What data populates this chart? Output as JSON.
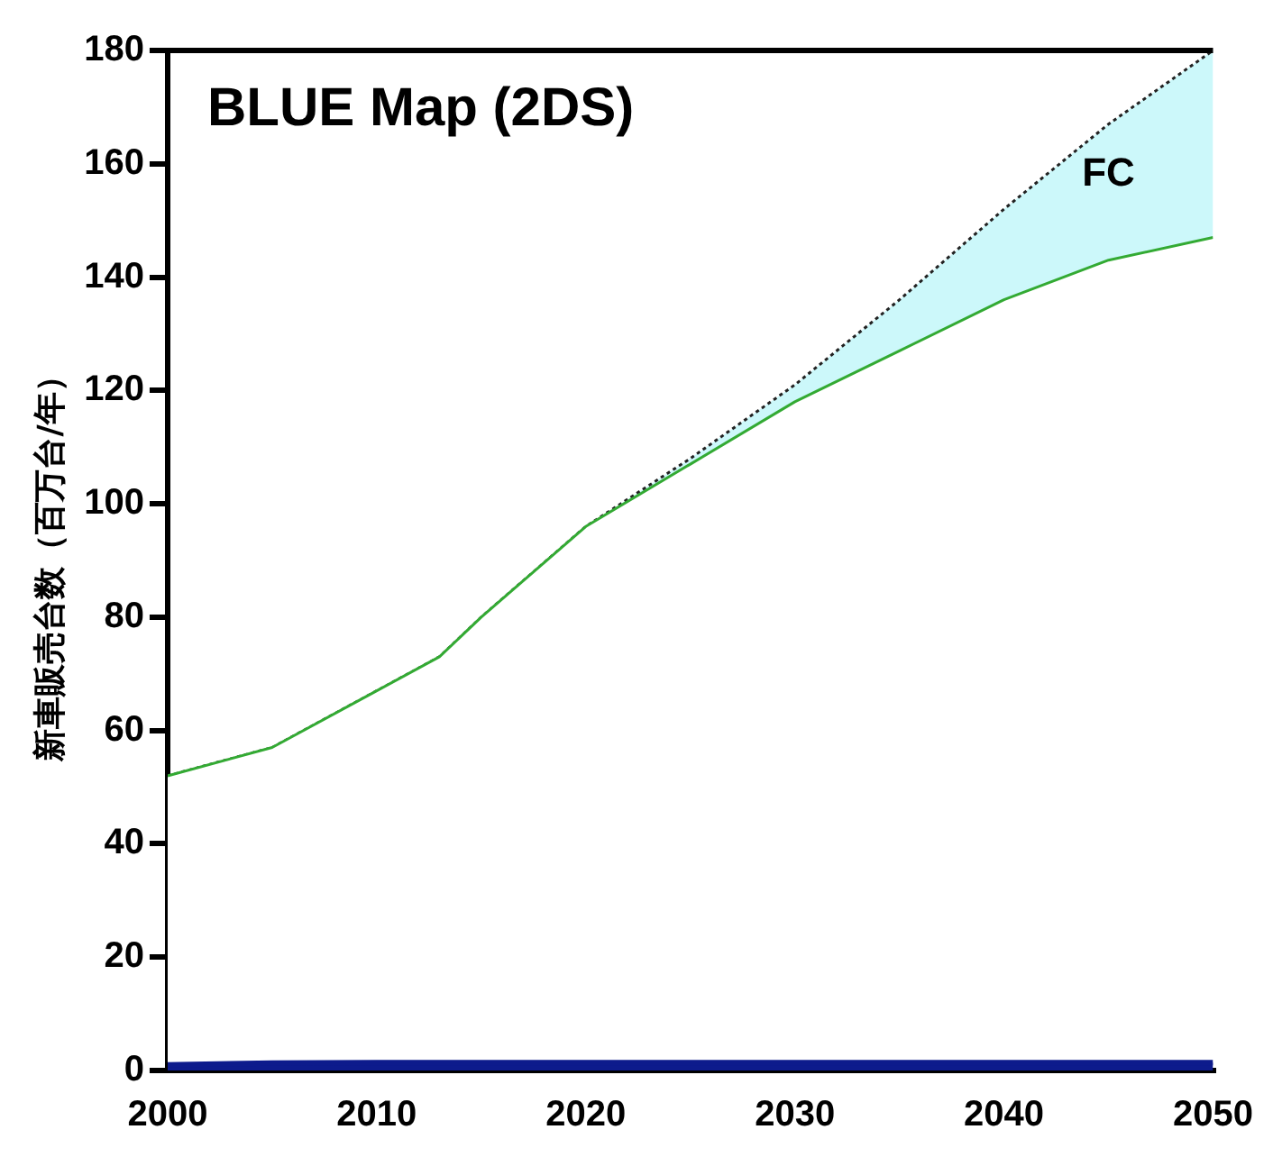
{
  "chart_data": {
    "type": "area",
    "title": "BLUE Map (2DS)",
    "ylabel": "新車販売台数（百万台/年）",
    "stacked": true,
    "x": [
      2000,
      2005,
      2010,
      2013,
      2015,
      2020,
      2025,
      2030,
      2035,
      2040,
      2045,
      2050
    ],
    "series": [
      {
        "color": "#0d1b8c",
        "values": [
          1,
          1.3,
          1.4,
          1.4,
          1.4,
          1.4,
          1.4,
          1.4,
          1.4,
          1.4,
          1.4,
          1.4
        ]
      },
      {
        "color": "#ffffff",
        "values": [
          51,
          55.7,
          65.6,
          71.6,
          78.6,
          94.6,
          105.6,
          116.6,
          125.6,
          134.6,
          141.6,
          145.6
        ]
      },
      {
        "name": "FC",
        "color": "#ccf8fa",
        "values": [
          0,
          0,
          0,
          0,
          0,
          0,
          1,
          3,
          9,
          16,
          24,
          33
        ]
      }
    ],
    "xlim": [
      2000,
      2050
    ],
    "xticks": [
      2000,
      2010,
      2020,
      2030,
      2040,
      2050
    ],
    "ylim": [
      0,
      180
    ],
    "yticks": [
      0,
      20,
      40,
      60,
      80,
      100,
      120,
      140,
      160,
      180
    ],
    "grid": false,
    "legend": false
  }
}
